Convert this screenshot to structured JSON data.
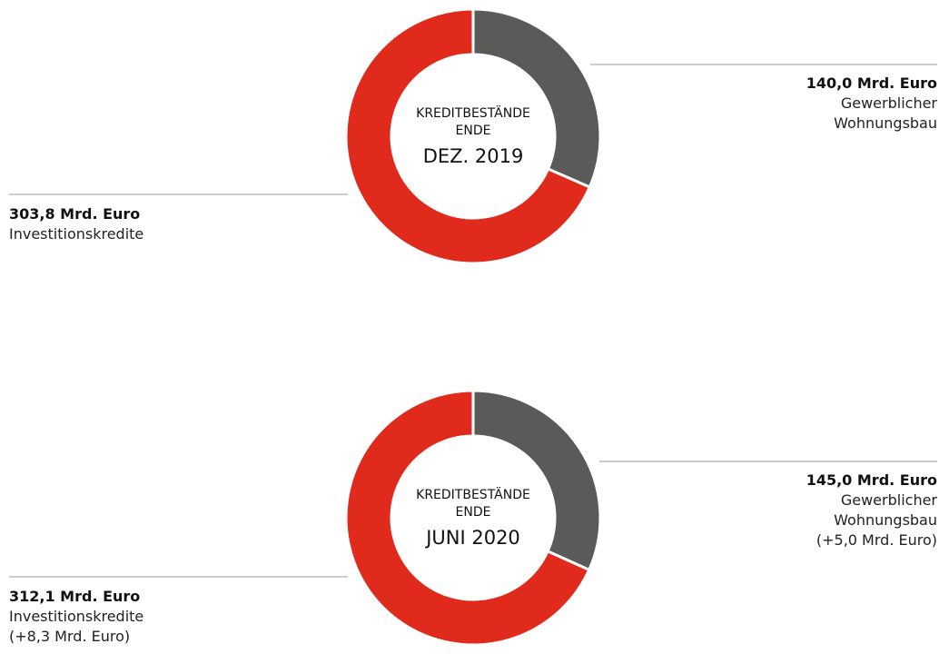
{
  "chart_data": [
    {
      "type": "pie",
      "center_label": "KREDITBESTÄNDE ENDE",
      "center_title": "DEZ. 2019",
      "categories": [
        "Gewerblicher Wohnungsbau",
        "Investitionskredite"
      ],
      "values": [
        140.0,
        303.8
      ],
      "value_labels": [
        "140,0 Mrd. Euro",
        "303,8 Mrd. Euro"
      ],
      "colors": [
        "#5a5a58",
        "#e02a1c"
      ]
    },
    {
      "type": "pie",
      "center_label": "KREDITBESTÄNDE ENDE",
      "center_title": "JUNI 2020",
      "categories": [
        "Gewerblicher Wohnungsbau",
        "Investitionskredite"
      ],
      "values": [
        145.0,
        312.1
      ],
      "value_labels": [
        "145,0 Mrd. Euro",
        "312,1 Mrd. Euro"
      ],
      "annotations": [
        "(+5,0 Mrd. Euro)",
        "(+8,3 Mrd. Euro)"
      ],
      "colors": [
        "#5a5a58",
        "#e02a1c"
      ]
    }
  ]
}
